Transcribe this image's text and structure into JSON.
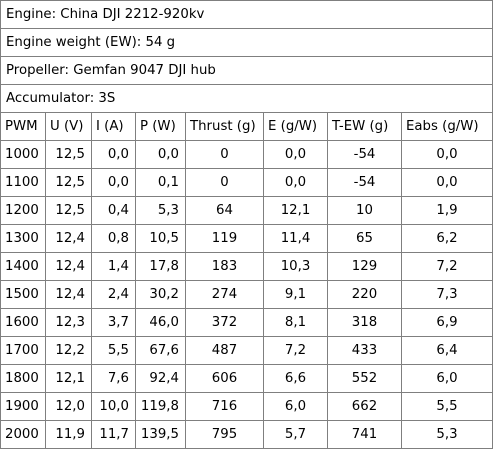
{
  "info": [
    "Engine: China DJI 2212-920kv",
    "Engine weight (EW): 54 g",
    "Propeller: Gemfan 9047 DJI hub",
    "Accumulator: 3S"
  ],
  "headers": [
    "PWM",
    "U (V)",
    "I (A)",
    "P (W)",
    "Thrust (g)",
    "E (g/W)",
    "T-EW (g)",
    "Eabs (g/W)"
  ],
  "rows": [
    [
      "1000",
      "12,5",
      "0,0",
      "0,0",
      "0",
      "0,0",
      "-54",
      "0,0"
    ],
    [
      "1100",
      "12,5",
      "0,0",
      "0,1",
      "0",
      "0,0",
      "-54",
      "0,0"
    ],
    [
      "1200",
      "12,5",
      "0,4",
      "5,3",
      "64",
      "12,1",
      "10",
      "1,9"
    ],
    [
      "1300",
      "12,4",
      "0,8",
      "10,5",
      "119",
      "11,4",
      "65",
      "6,2"
    ],
    [
      "1400",
      "12,4",
      "1,4",
      "17,8",
      "183",
      "10,3",
      "129",
      "7,2"
    ],
    [
      "1500",
      "12,4",
      "2,4",
      "30,2",
      "274",
      "9,1",
      "220",
      "7,3"
    ],
    [
      "1600",
      "12,3",
      "3,7",
      "46,0",
      "372",
      "8,1",
      "318",
      "6,9"
    ],
    [
      "1700",
      "12,2",
      "5,5",
      "67,6",
      "487",
      "7,2",
      "433",
      "6,4"
    ],
    [
      "1800",
      "12,1",
      "7,6",
      "92,4",
      "606",
      "6,6",
      "552",
      "6,0"
    ],
    [
      "1900",
      "12,0",
      "10,0",
      "119,8",
      "716",
      "6,0",
      "662",
      "5,5"
    ],
    [
      "2000",
      "11,9",
      "11,7",
      "139,5",
      "795",
      "5,7",
      "741",
      "5,3"
    ]
  ]
}
